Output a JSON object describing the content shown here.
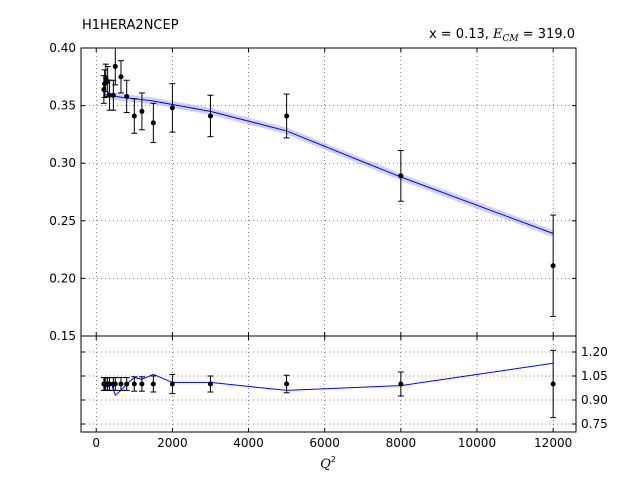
{
  "chart_data": {
    "type": "scatter",
    "title_left": "H1HERA2NCEP",
    "title_right_prefix": "x = 0.13, ",
    "title_right_var": "E",
    "title_right_sub": "CM",
    "title_right_suffix": " = 319.0",
    "xlabel_var": "Q",
    "xlabel_sup": "2",
    "xlim": [
      -400,
      12600
    ],
    "xticks": [
      0,
      2000,
      4000,
      6000,
      8000,
      10000,
      12000
    ],
    "xtick_labels": [
      "0",
      "2000",
      "4000",
      "6000",
      "8000",
      "10000",
      "12000"
    ],
    "grid": true,
    "colors": {
      "theory": "#0000ff",
      "band": "#b3b3ff",
      "data": "#000000"
    },
    "top_panel": {
      "ylim": [
        0.15,
        0.4
      ],
      "yticks": [
        0.15,
        0.2,
        0.25,
        0.3,
        0.35,
        0.4
      ],
      "ytick_labels": [
        "0.15",
        "0.20",
        "0.25",
        "0.30",
        "0.35",
        "0.40"
      ],
      "data": [
        {
          "x": 200,
          "y": 0.364,
          "err": 0.012
        },
        {
          "x": 220,
          "y": 0.369,
          "err": 0.012
        },
        {
          "x": 250,
          "y": 0.374,
          "err": 0.012
        },
        {
          "x": 300,
          "y": 0.371,
          "err": 0.013
        },
        {
          "x": 350,
          "y": 0.359,
          "err": 0.013
        },
        {
          "x": 450,
          "y": 0.359,
          "err": 0.013
        },
        {
          "x": 500,
          "y": 0.384,
          "err": 0.016
        },
        {
          "x": 650,
          "y": 0.375,
          "err": 0.014
        },
        {
          "x": 800,
          "y": 0.358,
          "err": 0.014
        },
        {
          "x": 1000,
          "y": 0.341,
          "err": 0.015
        },
        {
          "x": 1200,
          "y": 0.345,
          "err": 0.016
        },
        {
          "x": 1500,
          "y": 0.335,
          "err": 0.017
        },
        {
          "x": 2000,
          "y": 0.348,
          "err": 0.021
        },
        {
          "x": 3000,
          "y": 0.341,
          "err": 0.018
        },
        {
          "x": 5000,
          "y": 0.341,
          "err": 0.019
        },
        {
          "x": 8000,
          "y": 0.289,
          "err": 0.022
        },
        {
          "x": 12000,
          "y": 0.211,
          "err": 0.044
        }
      ],
      "theory": {
        "x": [
          200,
          300,
          400,
          500,
          700,
          1000,
          1500,
          2000,
          3000,
          5000,
          8000,
          12000
        ],
        "y": [
          0.36,
          0.359,
          0.358,
          0.358,
          0.357,
          0.356,
          0.354,
          0.351,
          0.345,
          0.328,
          0.288,
          0.239
        ],
        "band": 0.003
      }
    },
    "bottom_panel": {
      "ylim": [
        0.7,
        1.3
      ],
      "yticks": [
        0.75,
        0.9,
        1.05,
        1.2
      ],
      "ytick_labels": [
        "0.75",
        "0.90",
        "1.05",
        "1.20"
      ],
      "data": [
        {
          "x": 200,
          "y": 1.0,
          "err": 0.04
        },
        {
          "x": 220,
          "y": 1.0,
          "err": 0.04
        },
        {
          "x": 250,
          "y": 1.0,
          "err": 0.04
        },
        {
          "x": 300,
          "y": 1.0,
          "err": 0.04
        },
        {
          "x": 350,
          "y": 1.0,
          "err": 0.04
        },
        {
          "x": 450,
          "y": 1.0,
          "err": 0.04
        },
        {
          "x": 500,
          "y": 1.0,
          "err": 0.04
        },
        {
          "x": 650,
          "y": 1.0,
          "err": 0.04
        },
        {
          "x": 800,
          "y": 1.0,
          "err": 0.04
        },
        {
          "x": 1000,
          "y": 1.0,
          "err": 0.045
        },
        {
          "x": 1200,
          "y": 1.0,
          "err": 0.045
        },
        {
          "x": 1500,
          "y": 1.0,
          "err": 0.05
        },
        {
          "x": 2000,
          "y": 1.0,
          "err": 0.06
        },
        {
          "x": 3000,
          "y": 1.0,
          "err": 0.05
        },
        {
          "x": 5000,
          "y": 1.0,
          "err": 0.055
        },
        {
          "x": 8000,
          "y": 1.0,
          "err": 0.075
        },
        {
          "x": 12000,
          "y": 1.0,
          "err": 0.21
        }
      ],
      "theory": {
        "x": [
          200,
          300,
          400,
          500,
          650,
          800,
          1000,
          1200,
          1500,
          2000,
          3000,
          5000,
          8000,
          12000
        ],
        "y": [
          0.99,
          0.98,
          1.0,
          0.93,
          0.96,
          1.0,
          1.04,
          1.03,
          1.06,
          1.01,
          1.01,
          0.96,
          0.99,
          1.13
        ]
      }
    }
  }
}
